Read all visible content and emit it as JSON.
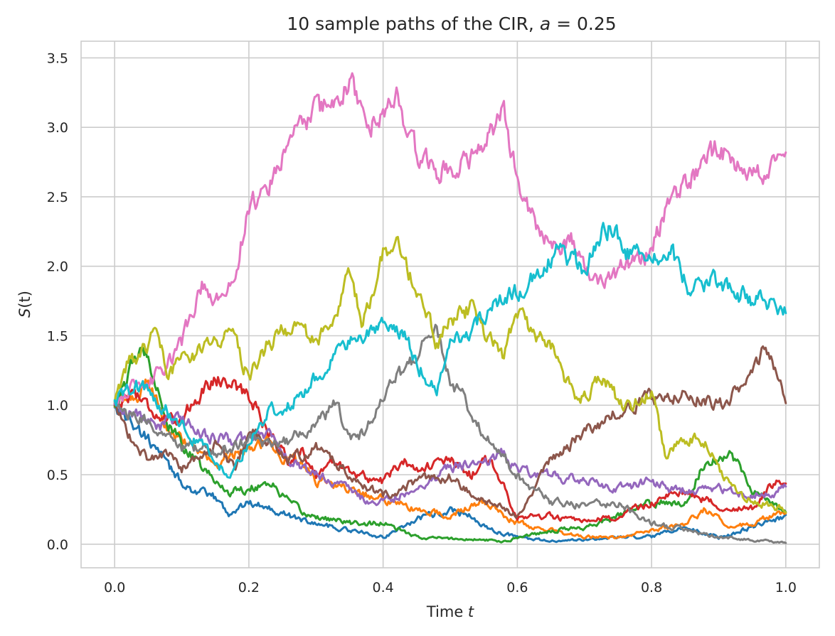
{
  "chart_data": {
    "type": "line",
    "title": "10 sample paths of the CIR, a = 0.25",
    "title_parts": {
      "prefix": "10 sample paths of the CIR, ",
      "var": "a",
      "suffix": " = 0.25"
    },
    "xlabel": "Time t",
    "xlabel_parts": {
      "prefix": "Time ",
      "var": "t"
    },
    "ylabel": "S(t)",
    "ylabel_parts": {
      "var": "S",
      "suffix": "(t)"
    },
    "xlim": [
      -0.05,
      1.05
    ],
    "ylim": [
      -0.17,
      3.62
    ],
    "xticks": [
      0.0,
      0.2,
      0.4,
      0.6,
      0.8,
      1.0
    ],
    "xtick_labels": [
      "0.0",
      "0.2",
      "0.4",
      "0.6",
      "0.8",
      "1.0"
    ],
    "yticks": [
      0.0,
      0.5,
      1.0,
      1.5,
      2.0,
      2.5,
      3.0,
      3.5
    ],
    "ytick_labels": [
      "0.0",
      "0.5",
      "1.0",
      "1.5",
      "2.0",
      "2.5",
      "3.0",
      "3.5"
    ],
    "grid": true,
    "legend": "none",
    "noise_amplitude": 0.03,
    "series": [
      {
        "color": "#1f77b4",
        "x": [
          0,
          0.03,
          0.06,
          0.08,
          0.1,
          0.12,
          0.15,
          0.17,
          0.2,
          0.23,
          0.26,
          0.3,
          0.35,
          0.4,
          0.45,
          0.5,
          0.53,
          0.56,
          0.6,
          0.65,
          0.7,
          0.75,
          0.8,
          0.85,
          0.9,
          0.95,
          1.0
        ],
        "y": [
          1.0,
          0.85,
          0.7,
          0.55,
          0.45,
          0.38,
          0.33,
          0.22,
          0.3,
          0.27,
          0.2,
          0.15,
          0.1,
          0.05,
          0.18,
          0.25,
          0.2,
          0.1,
          0.05,
          0.02,
          0.03,
          0.05,
          0.05,
          0.12,
          0.05,
          0.12,
          0.2
        ]
      },
      {
        "color": "#ff7f0e",
        "x": [
          0,
          0.03,
          0.05,
          0.08,
          0.12,
          0.15,
          0.18,
          0.2,
          0.23,
          0.25,
          0.28,
          0.3,
          0.35,
          0.4,
          0.45,
          0.5,
          0.52,
          0.55,
          0.6,
          0.65,
          0.7,
          0.75,
          0.8,
          0.85,
          0.88,
          0.92,
          1.0
        ],
        "y": [
          1.0,
          1.05,
          1.15,
          0.85,
          0.7,
          0.55,
          0.65,
          0.7,
          0.75,
          0.62,
          0.6,
          0.45,
          0.4,
          0.32,
          0.25,
          0.2,
          0.25,
          0.3,
          0.15,
          0.1,
          0.05,
          0.05,
          0.1,
          0.15,
          0.25,
          0.12,
          0.22
        ]
      },
      {
        "color": "#2ca02c",
        "x": [
          0,
          0.02,
          0.03,
          0.05,
          0.08,
          0.12,
          0.15,
          0.17,
          0.2,
          0.23,
          0.25,
          0.28,
          0.3,
          0.35,
          0.4,
          0.45,
          0.5,
          0.55,
          0.58,
          0.6,
          0.65,
          0.7,
          0.75,
          0.8,
          0.85,
          0.88,
          0.92,
          0.95,
          1.0
        ],
        "y": [
          1.0,
          1.2,
          1.35,
          1.38,
          0.85,
          0.6,
          0.45,
          0.38,
          0.4,
          0.45,
          0.35,
          0.22,
          0.2,
          0.15,
          0.15,
          0.05,
          0.04,
          0.03,
          0.02,
          0.05,
          0.1,
          0.12,
          0.2,
          0.3,
          0.3,
          0.6,
          0.65,
          0.4,
          0.22
        ]
      },
      {
        "color": "#d62728",
        "x": [
          0,
          0.03,
          0.06,
          0.09,
          0.12,
          0.15,
          0.18,
          0.21,
          0.23,
          0.26,
          0.28,
          0.3,
          0.33,
          0.36,
          0.4,
          0.43,
          0.46,
          0.5,
          0.53,
          0.56,
          0.6,
          0.65,
          0.7,
          0.75,
          0.8,
          0.85,
          0.9,
          0.95,
          0.99,
          1.0
        ],
        "y": [
          1.0,
          1.1,
          0.95,
          0.85,
          1.05,
          1.2,
          1.15,
          1.0,
          0.8,
          0.6,
          0.68,
          0.5,
          0.6,
          0.5,
          0.45,
          0.6,
          0.55,
          0.6,
          0.5,
          0.62,
          0.2,
          0.2,
          0.15,
          0.2,
          0.3,
          0.38,
          0.28,
          0.25,
          0.48,
          0.45
        ]
      },
      {
        "color": "#9467bd",
        "x": [
          0,
          0.03,
          0.06,
          0.1,
          0.13,
          0.16,
          0.2,
          0.23,
          0.26,
          0.3,
          0.33,
          0.36,
          0.38,
          0.4,
          0.45,
          0.48,
          0.5,
          0.55,
          0.58,
          0.6,
          0.65,
          0.7,
          0.75,
          0.8,
          0.83,
          0.86,
          0.9,
          0.95,
          1.0
        ],
        "y": [
          1.0,
          0.95,
          0.85,
          0.9,
          0.8,
          0.75,
          0.75,
          0.8,
          0.6,
          0.5,
          0.45,
          0.35,
          0.3,
          0.3,
          0.4,
          0.5,
          0.55,
          0.6,
          0.65,
          0.55,
          0.5,
          0.45,
          0.4,
          0.45,
          0.4,
          0.38,
          0.4,
          0.35,
          0.4
        ]
      },
      {
        "color": "#8c564b",
        "x": [
          0,
          0.03,
          0.05,
          0.08,
          0.1,
          0.12,
          0.15,
          0.18,
          0.2,
          0.23,
          0.26,
          0.3,
          0.35,
          0.4,
          0.45,
          0.5,
          0.55,
          0.6,
          0.65,
          0.7,
          0.75,
          0.8,
          0.85,
          0.9,
          0.93,
          0.97,
          1.0
        ],
        "y": [
          1.0,
          0.7,
          0.62,
          0.65,
          0.55,
          0.6,
          0.7,
          0.55,
          0.8,
          0.75,
          0.6,
          0.7,
          0.5,
          0.35,
          0.45,
          0.48,
          0.3,
          0.22,
          0.6,
          0.8,
          0.95,
          1.05,
          1.1,
          1.0,
          1.1,
          1.4,
          1.02
        ]
      },
      {
        "color": "#e377c2",
        "x": [
          0,
          0.02,
          0.04,
          0.06,
          0.08,
          0.1,
          0.13,
          0.15,
          0.17,
          0.2,
          0.23,
          0.25,
          0.28,
          0.3,
          0.33,
          0.35,
          0.38,
          0.4,
          0.42,
          0.45,
          0.48,
          0.5,
          0.53,
          0.56,
          0.58,
          0.6,
          0.63,
          0.65,
          0.68,
          0.7,
          0.73,
          0.76,
          0.8,
          0.82,
          0.85,
          0.88,
          0.9,
          0.93,
          0.96,
          0.98,
          1.0
        ],
        "y": [
          1.0,
          1.12,
          1.1,
          1.2,
          1.3,
          1.45,
          1.85,
          1.75,
          1.82,
          2.4,
          2.6,
          2.8,
          3.0,
          3.1,
          3.2,
          3.35,
          3.0,
          3.1,
          3.2,
          2.8,
          2.7,
          2.7,
          2.8,
          2.95,
          3.15,
          2.6,
          2.3,
          2.15,
          2.2,
          2.0,
          1.85,
          2.0,
          2.1,
          2.4,
          2.6,
          2.75,
          2.85,
          2.7,
          2.65,
          2.7,
          2.9
        ]
      },
      {
        "color": "#7f7f7f",
        "x": [
          0,
          0.03,
          0.06,
          0.1,
          0.15,
          0.2,
          0.25,
          0.28,
          0.3,
          0.33,
          0.35,
          0.37,
          0.4,
          0.42,
          0.45,
          0.48,
          0.5,
          0.55,
          0.6,
          0.65,
          0.7,
          0.75,
          0.8,
          0.85,
          0.9,
          0.95,
          1.0
        ],
        "y": [
          1.0,
          0.9,
          0.85,
          0.7,
          0.65,
          0.75,
          0.72,
          0.8,
          0.85,
          1.0,
          0.75,
          0.8,
          1.05,
          1.2,
          1.35,
          1.55,
          1.2,
          0.8,
          0.5,
          0.3,
          0.28,
          0.3,
          0.15,
          0.1,
          0.05,
          0.03,
          0.01
        ]
      },
      {
        "color": "#bcbd22",
        "x": [
          0,
          0.02,
          0.04,
          0.06,
          0.08,
          0.1,
          0.13,
          0.16,
          0.18,
          0.2,
          0.23,
          0.26,
          0.28,
          0.3,
          0.33,
          0.35,
          0.37,
          0.4,
          0.42,
          0.45,
          0.48,
          0.5,
          0.53,
          0.55,
          0.58,
          0.6,
          0.63,
          0.65,
          0.68,
          0.7,
          0.73,
          0.76,
          0.8,
          0.82,
          0.85,
          0.88,
          0.9,
          0.93,
          0.96,
          1.0
        ],
        "y": [
          1.0,
          1.3,
          1.35,
          1.55,
          1.25,
          1.3,
          1.4,
          1.5,
          1.45,
          1.2,
          1.45,
          1.55,
          1.5,
          1.45,
          1.6,
          1.95,
          1.6,
          2.1,
          2.15,
          1.8,
          1.45,
          1.6,
          1.7,
          1.5,
          1.35,
          1.65,
          1.5,
          1.45,
          1.1,
          1.05,
          1.2,
          0.95,
          1.1,
          0.65,
          0.75,
          0.75,
          0.55,
          0.35,
          0.3,
          0.25
        ]
      },
      {
        "color": "#17becf",
        "x": [
          0,
          0.03,
          0.05,
          0.08,
          0.1,
          0.12,
          0.15,
          0.17,
          0.2,
          0.23,
          0.26,
          0.28,
          0.3,
          0.33,
          0.36,
          0.38,
          0.4,
          0.43,
          0.45,
          0.48,
          0.5,
          0.53,
          0.56,
          0.6,
          0.63,
          0.66,
          0.7,
          0.72,
          0.74,
          0.76,
          0.8,
          0.83,
          0.86,
          0.9,
          0.93,
          0.96,
          1.0
        ],
        "y": [
          1.0,
          1.15,
          1.1,
          0.95,
          0.85,
          0.75,
          0.6,
          0.5,
          0.75,
          0.95,
          1.0,
          1.1,
          1.2,
          1.4,
          1.45,
          1.5,
          1.55,
          1.55,
          1.3,
          1.1,
          1.4,
          1.55,
          1.7,
          1.8,
          1.95,
          2.1,
          2.0,
          2.2,
          2.3,
          2.1,
          2.05,
          2.1,
          1.8,
          1.9,
          1.8,
          1.75,
          1.7
        ]
      }
    ]
  }
}
